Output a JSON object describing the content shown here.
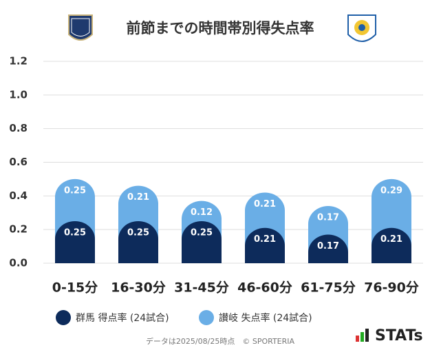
{
  "chart_data": {
    "type": "stacked-bar",
    "title": "前節までの時間帯別得失点率",
    "categories": [
      "0-15分",
      "16-30分",
      "31-45分",
      "46-60分",
      "61-75分",
      "76-90分"
    ],
    "series": [
      {
        "name": "群馬 得点率 (24試合)",
        "color": "#0d2b5b",
        "values": [
          0.25,
          0.25,
          0.25,
          0.21,
          0.17,
          0.21
        ]
      },
      {
        "name": "讃岐 失点率 (24試合)",
        "color": "#6aaee6",
        "values": [
          0.25,
          0.21,
          0.12,
          0.21,
          0.17,
          0.29
        ]
      }
    ],
    "ylim": [
      0,
      1.2
    ],
    "yticks": [
      {
        "value": 0,
        "label": "0.0"
      },
      0.2,
      0.4,
      0.6,
      0.8,
      {
        "value": 1,
        "label": "1.0"
      },
      1.2
    ],
    "grid": true,
    "footer": "データは2025/08/25時点　© SPORTERIA",
    "brand": "STATs"
  }
}
